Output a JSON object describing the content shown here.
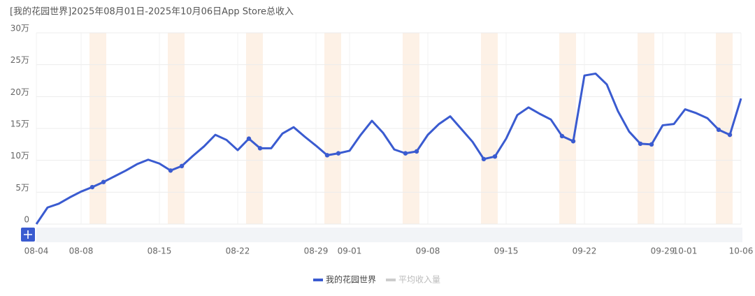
{
  "chart_data": {
    "type": "line",
    "title": "[我的花园世界]2025年08月01日-2025年10月06日App Store总收入",
    "categories": [
      "08-04",
      null,
      null,
      null,
      "08-08",
      null,
      null,
      null,
      null,
      null,
      null,
      "08-15",
      null,
      null,
      null,
      null,
      null,
      null,
      "08-22",
      null,
      null,
      null,
      null,
      null,
      null,
      "08-29",
      null,
      null,
      "09-01",
      null,
      null,
      null,
      null,
      null,
      null,
      "09-08",
      null,
      null,
      null,
      null,
      null,
      null,
      "09-15",
      null,
      null,
      null,
      null,
      null,
      null,
      "09-22",
      null,
      null,
      null,
      null,
      null,
      null,
      "09-29",
      null,
      "10-01",
      null,
      null,
      null,
      null,
      "10-06"
    ],
    "series": [
      {
        "name": "我的花园世界",
        "color": "#3a5bd0",
        "values": [
          0,
          26000,
          32000,
          42000,
          51000,
          58000,
          66000,
          75000,
          84000,
          94000,
          101000,
          95000,
          84000,
          91000,
          107000,
          122000,
          140000,
          132000,
          116000,
          134000,
          119000,
          119000,
          142000,
          152000,
          137000,
          123000,
          108000,
          111000,
          115000,
          140000,
          162000,
          143000,
          117000,
          111000,
          114000,
          140000,
          157000,
          169000,
          149000,
          129000,
          102000,
          106000,
          134000,
          171000,
          183000,
          173000,
          164000,
          138000,
          130000,
          233000,
          236000,
          219000,
          177000,
          145000,
          126000,
          125000,
          155000,
          157000,
          180000,
          174000,
          166000,
          148000,
          140000,
          197000
        ]
      }
    ],
    "inactive_legend": {
      "name": "平均收入量",
      "color": "#cccccc"
    },
    "ylim": [
      0,
      300000
    ],
    "yticks": [
      0,
      {
        "value": 50000,
        "label": "5万"
      },
      {
        "value": 100000,
        "label": "10万"
      },
      {
        "value": 150000,
        "label": "15万"
      },
      {
        "value": 200000,
        "label": "20万"
      },
      {
        "value": 250000,
        "label": "25万"
      },
      {
        "value": 300000,
        "label": "30万"
      }
    ],
    "grid": true
  }
}
